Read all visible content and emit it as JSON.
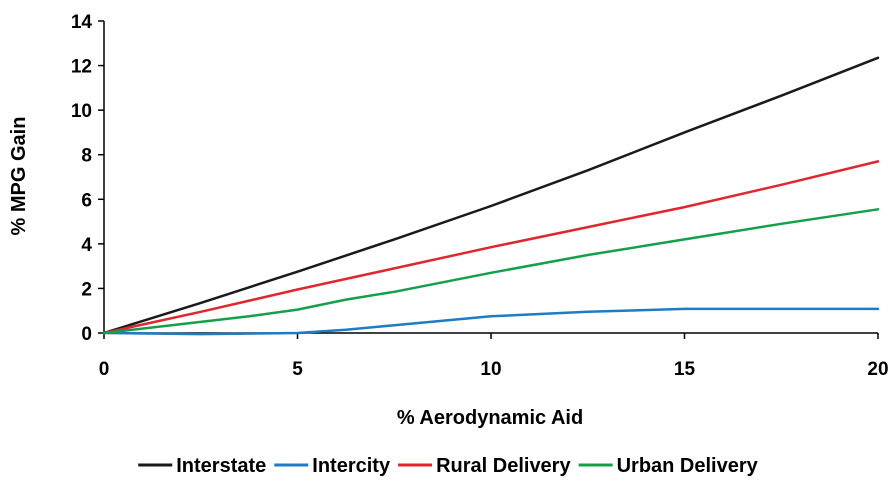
{
  "chart_data": {
    "type": "line",
    "xlabel": "% Aerodynamic Aid",
    "ylabel": "% MPG Gain",
    "xlim": [
      0,
      20
    ],
    "ylim": [
      0,
      14
    ],
    "x_ticks": [
      "0",
      "5",
      "10",
      "15",
      "20"
    ],
    "y_ticks": [
      "0",
      "2",
      "4",
      "6",
      "8",
      "10",
      "12",
      "14"
    ],
    "grid": false,
    "legend_position": "bottom",
    "series": [
      {
        "name": "Interstate",
        "color": "#1a1a1a",
        "x": [
          0,
          2.5,
          5,
          7.5,
          10,
          12.5,
          15,
          17.5,
          20
        ],
        "y": [
          0,
          1.35,
          2.75,
          4.2,
          5.7,
          7.3,
          9.0,
          10.65,
          12.35
        ]
      },
      {
        "name": "Intercity",
        "color": "#1f7bc2",
        "x": [
          0,
          2.5,
          5,
          6.25,
          7.5,
          10,
          12.5,
          15,
          17.5,
          20
        ],
        "y": [
          0,
          -0.05,
          0,
          0.15,
          0.35,
          0.75,
          0.95,
          1.08,
          1.08,
          1.08
        ]
      },
      {
        "name": "Rural Delivery",
        "color": "#e0262e",
        "x": [
          0,
          2.5,
          5,
          7.5,
          10,
          12.5,
          15,
          17.5,
          20
        ],
        "y": [
          0,
          0.95,
          1.95,
          2.9,
          3.85,
          4.75,
          5.65,
          6.65,
          7.7
        ]
      },
      {
        "name": "Urban Delivery",
        "color": "#14a04a",
        "x": [
          0,
          2.5,
          3.75,
          5,
          6.25,
          7.5,
          10,
          12.5,
          15,
          17.5,
          20
        ],
        "y": [
          0,
          0.5,
          0.75,
          1.05,
          1.5,
          1.85,
          2.7,
          3.5,
          4.2,
          4.9,
          5.55
        ]
      }
    ]
  }
}
